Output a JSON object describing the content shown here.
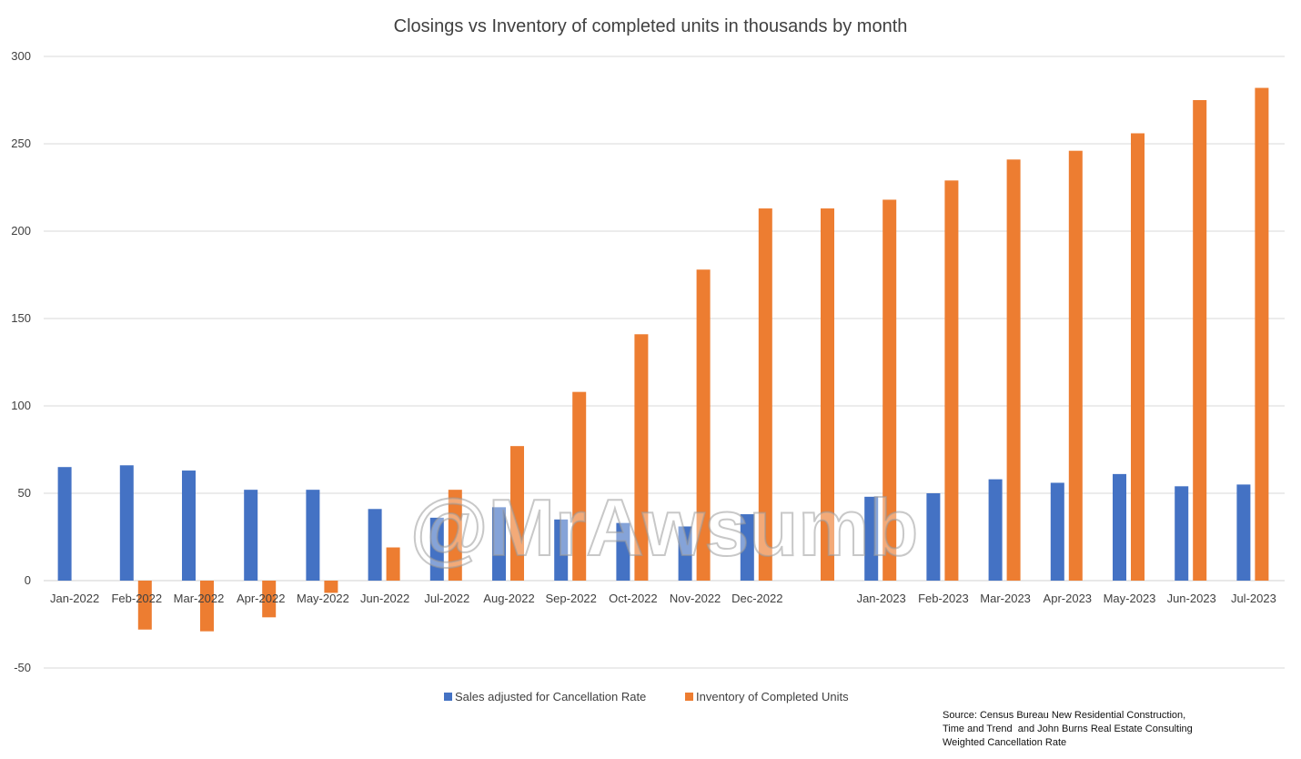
{
  "chart_data": {
    "type": "bar",
    "title": "Closings vs Inventory of completed units in thousands by month",
    "categories": [
      "Jan-2022",
      "Feb-2022",
      "Mar-2022",
      "Apr-2022",
      "May-2022",
      "Jun-2022",
      "Jul-2022",
      "Aug-2022",
      "Sep-2022",
      "Oct-2022",
      "Nov-2022",
      "Dec-2022",
      "",
      "Jan-2023",
      "Feb-2023",
      "Mar-2023",
      "Apr-2023",
      "May-2023",
      "Jun-2023",
      "Jul-2023"
    ],
    "series": [
      {
        "name": "Sales adjusted for Cancellation Rate",
        "color": "#4472c4",
        "values": [
          65,
          66,
          63,
          52,
          52,
          41,
          36,
          42,
          35,
          33,
          31,
          38,
          null,
          48,
          50,
          58,
          56,
          61,
          54,
          55
        ]
      },
      {
        "name": "Inventory of Completed Units",
        "color": "#ed7d31",
        "values": [
          null,
          -28,
          -29,
          -21,
          -7,
          19,
          52,
          77,
          108,
          141,
          178,
          213,
          213,
          218,
          229,
          241,
          246,
          256,
          275,
          282
        ]
      }
    ],
    "yticks": [
      -50,
      0,
      50,
      100,
      150,
      200,
      250,
      300
    ],
    "ylim": [
      -50,
      300
    ],
    "grid": true,
    "legend": "bottom-center",
    "xlabel": "",
    "ylabel": ""
  },
  "watermark": "@MrAwsumb",
  "source_lines": [
    "Source: Census Bureau New Residential Construction,",
    "Time and Trend  and John Burns Real Estate Consulting",
    "Weighted Cancellation Rate"
  ]
}
